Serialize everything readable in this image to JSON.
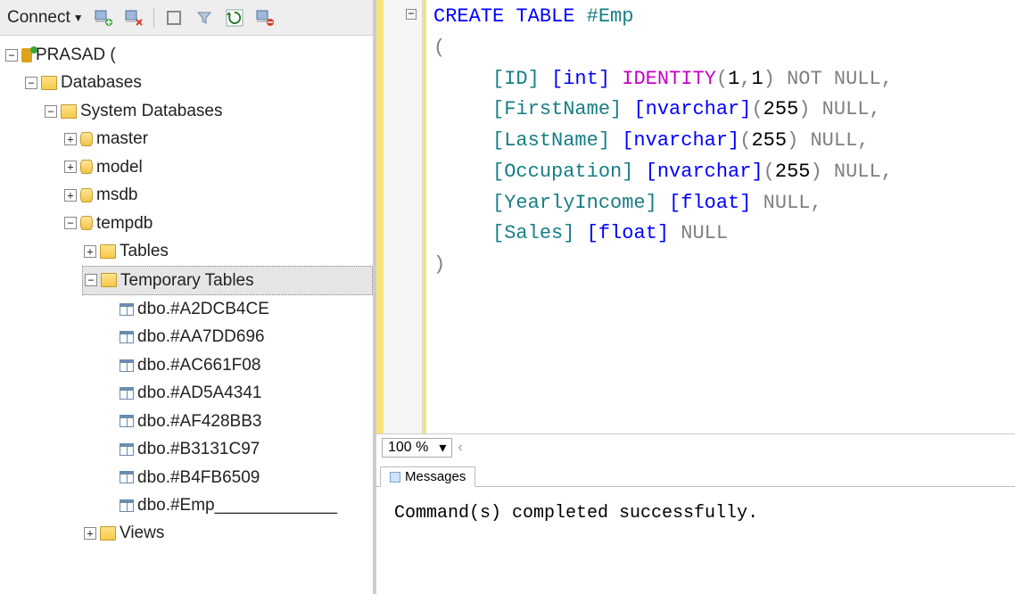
{
  "toolbar": {
    "connect_label": "Connect"
  },
  "tree": {
    "server": "PRASAD (",
    "databases": "Databases",
    "sysdb": "System Databases",
    "master": "master",
    "model": "model",
    "msdb": "msdb",
    "tempdb": "tempdb",
    "tables": "Tables",
    "temp_tables": "Temporary Tables",
    "views": "Views",
    "temp_items": [
      "dbo.#A2DCB4CE",
      "dbo.#AA7DD696",
      "dbo.#AC661F08",
      "dbo.#AD5A4341",
      "dbo.#AF428BB3",
      "dbo.#B3131C97",
      "dbo.#B4FB6509",
      "dbo.#Emp_____________"
    ]
  },
  "sql": {
    "l1a": "CREATE",
    "l1b": " TABLE",
    "l1c": " #Emp",
    "l2": "(",
    "l3_col": "     [ID] ",
    "l3_typ": "[int] ",
    "l3_idn": "IDENTITY",
    "l3_par": "(",
    "l3_n1": "1",
    "l3_cm": ",",
    "l3_n2": "1",
    "l3_cp": ")",
    "l3_nn": " NOT NULL",
    "l3_end": ",",
    "l4_col": "     [FirstName] ",
    "l4_typ": "[nvarchar]",
    "l4_par": "(",
    "l4_sz": "255",
    "l4_cp": ")",
    "l4_nn": " NULL",
    "l4_end": ",",
    "l5_col": "     [LastName] ",
    "l5_typ": "[nvarchar]",
    "l5_par": "(",
    "l5_sz": "255",
    "l5_cp": ")",
    "l5_nn": " NULL",
    "l5_end": ",",
    "l6_col": "     [Occupation] ",
    "l6_typ": "[nvarchar]",
    "l6_par": "(",
    "l6_sz": "255",
    "l6_cp": ")",
    "l6_nn": " NULL",
    "l6_end": ",",
    "l7_col": "     [YearlyIncome] ",
    "l7_typ": "[float]",
    "l7_nn": " NULL",
    "l7_end": ",",
    "l8_col": "     [Sales] ",
    "l8_typ": "[float]",
    "l8_nn": " NULL",
    "l9": ")"
  },
  "zoom": {
    "value": "100 %"
  },
  "tab": {
    "label": "Messages"
  },
  "message": "Command(s) completed successfully.",
  "colors": {
    "keyword": "#0000ff",
    "type": "#177e84",
    "graykw": "#808080",
    "ident": "#c800c8"
  }
}
